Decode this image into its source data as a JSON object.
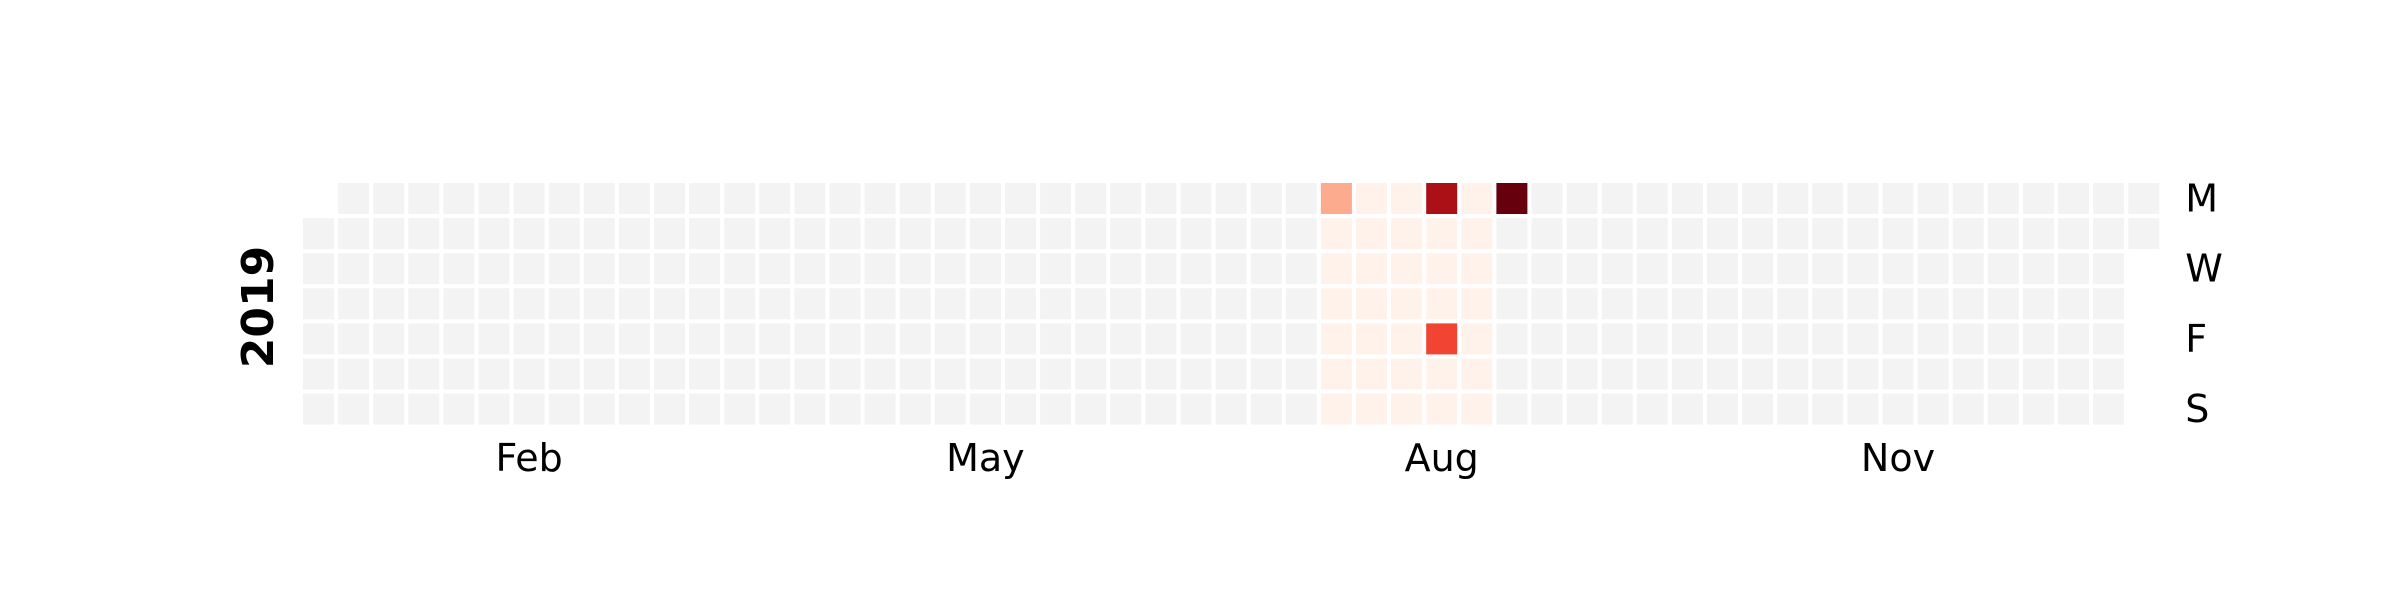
{
  "chart_data": {
    "type": "heatmap",
    "title": "",
    "year": "2019",
    "colormap": "Reds",
    "empty_color": "#f3f3f3",
    "range_start": "2019-01-01",
    "range_end": "2019-12-31",
    "vmax": 5,
    "month_labels": [
      "Feb",
      "May",
      "Aug",
      "Nov"
    ],
    "day_labels": [
      "M",
      "W",
      "F",
      "S"
    ],
    "day_label_rows": [
      0,
      2,
      4,
      6
    ],
    "grid": false,
    "cells": [
      {
        "date": "2019-07-22",
        "value": 1.5
      },
      {
        "date": "2019-08-12",
        "value": 4.3
      },
      {
        "date": "2019-08-16",
        "value": 3.0
      },
      {
        "date": "2019-08-26",
        "value": 5.0
      }
    ],
    "baseline_value": 0.1,
    "baseline_start": "2019-07-22",
    "baseline_end": "2019-08-25"
  }
}
